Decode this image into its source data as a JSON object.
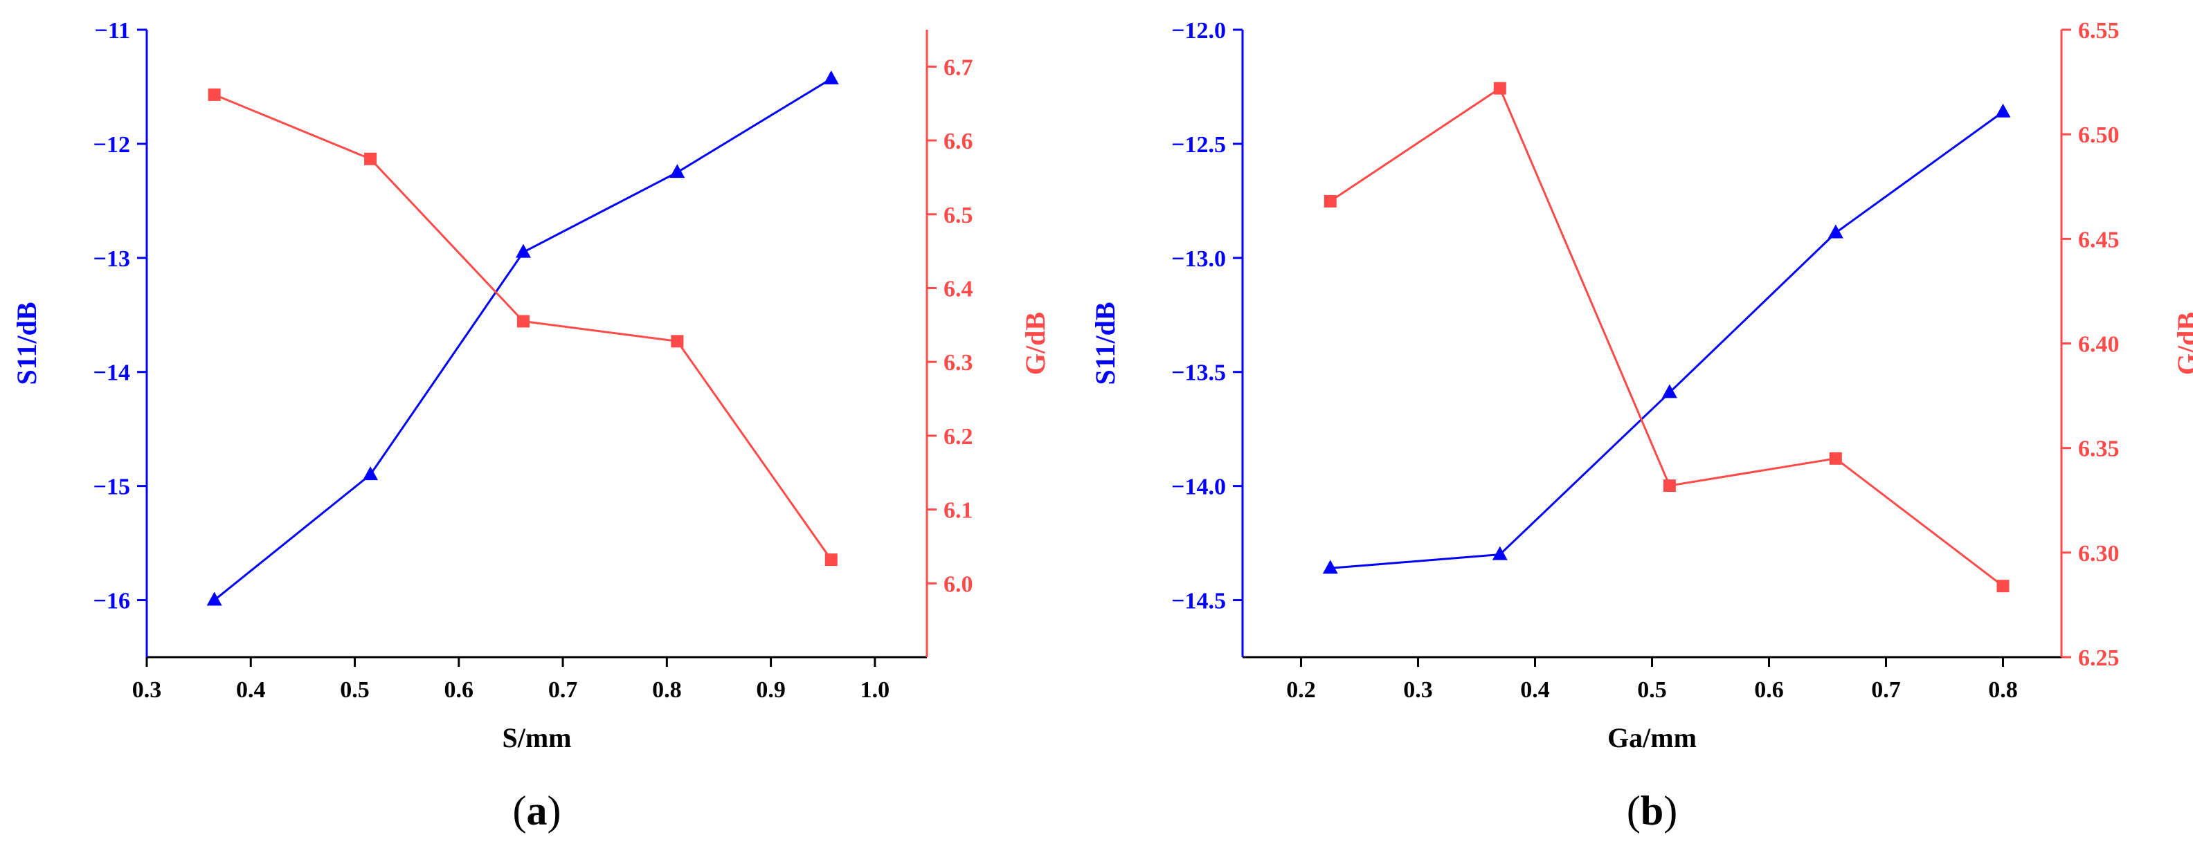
{
  "colors": {
    "s11": "#0000ff",
    "gain": "#ff4a4a",
    "axis": "#000000"
  },
  "chart_data": [
    {
      "type": "line",
      "panel_label": {
        "open": "(",
        "letter": "a",
        "close": ")"
      },
      "xlabel": "S/mm",
      "ylabel_left": "S11/dB",
      "ylabel_right": "G/dB",
      "xlim": [
        0.3,
        1.05
      ],
      "ylim_left": [
        -16.5,
        -11
      ],
      "ylim_right": [
        5.9,
        6.75
      ],
      "xticks": [
        "0.3",
        "0.4",
        "0.5",
        "0.6",
        "0.7",
        "0.8",
        "0.9",
        "1.0"
      ],
      "yticks_left": [
        "-11",
        "-12",
        "-13",
        "-14",
        "-15",
        "-16"
      ],
      "yticks_right": [
        "6.7",
        "6.6",
        "6.5",
        "6.4",
        "6.3",
        "6.2",
        "6.1",
        "6.0"
      ],
      "series": [
        {
          "axis": "left",
          "marker": "triangle",
          "color": "#0000ff",
          "x": [
            0.365,
            0.515,
            0.662,
            0.81,
            0.958
          ],
          "values": [
            -16.0,
            -14.9,
            -12.95,
            -12.25,
            -11.43
          ]
        },
        {
          "axis": "right",
          "marker": "square",
          "color": "#ff4a4a",
          "x": [
            0.365,
            0.515,
            0.662,
            0.81,
            0.958
          ],
          "values": [
            6.662,
            6.575,
            6.355,
            6.328,
            6.032
          ]
        }
      ]
    },
    {
      "type": "line",
      "panel_label": {
        "open": "(",
        "letter": "b",
        "close": ")"
      },
      "xlabel": "Ga/mm",
      "ylabel_left": "S11/dB",
      "ylabel_right": "G/dB",
      "xlim": [
        0.15,
        0.85
      ],
      "ylim_left": [
        -14.75,
        -12.0
      ],
      "ylim_right": [
        6.25,
        6.55
      ],
      "xticks": [
        "0.2",
        "0.3",
        "0.4",
        "0.5",
        "0.6",
        "0.7",
        "0.8"
      ],
      "yticks_left": [
        "-12.0",
        "-12.5",
        "-13.0",
        "-13.5",
        "-14.0",
        "-14.5"
      ],
      "yticks_right": [
        "6.55",
        "6.50",
        "6.45",
        "6.40",
        "6.35",
        "6.30",
        "6.25"
      ],
      "series": [
        {
          "axis": "left",
          "marker": "triangle",
          "color": "#0000ff",
          "x": [
            0.225,
            0.37,
            0.515,
            0.657,
            0.8
          ],
          "values": [
            -14.36,
            -14.3,
            -13.59,
            -12.89,
            -12.36
          ]
        },
        {
          "axis": "right",
          "marker": "square",
          "color": "#ff4a4a",
          "x": [
            0.225,
            0.37,
            0.515,
            0.657,
            0.8
          ],
          "values": [
            6.468,
            6.522,
            6.332,
            6.345,
            6.284
          ]
        }
      ]
    }
  ]
}
